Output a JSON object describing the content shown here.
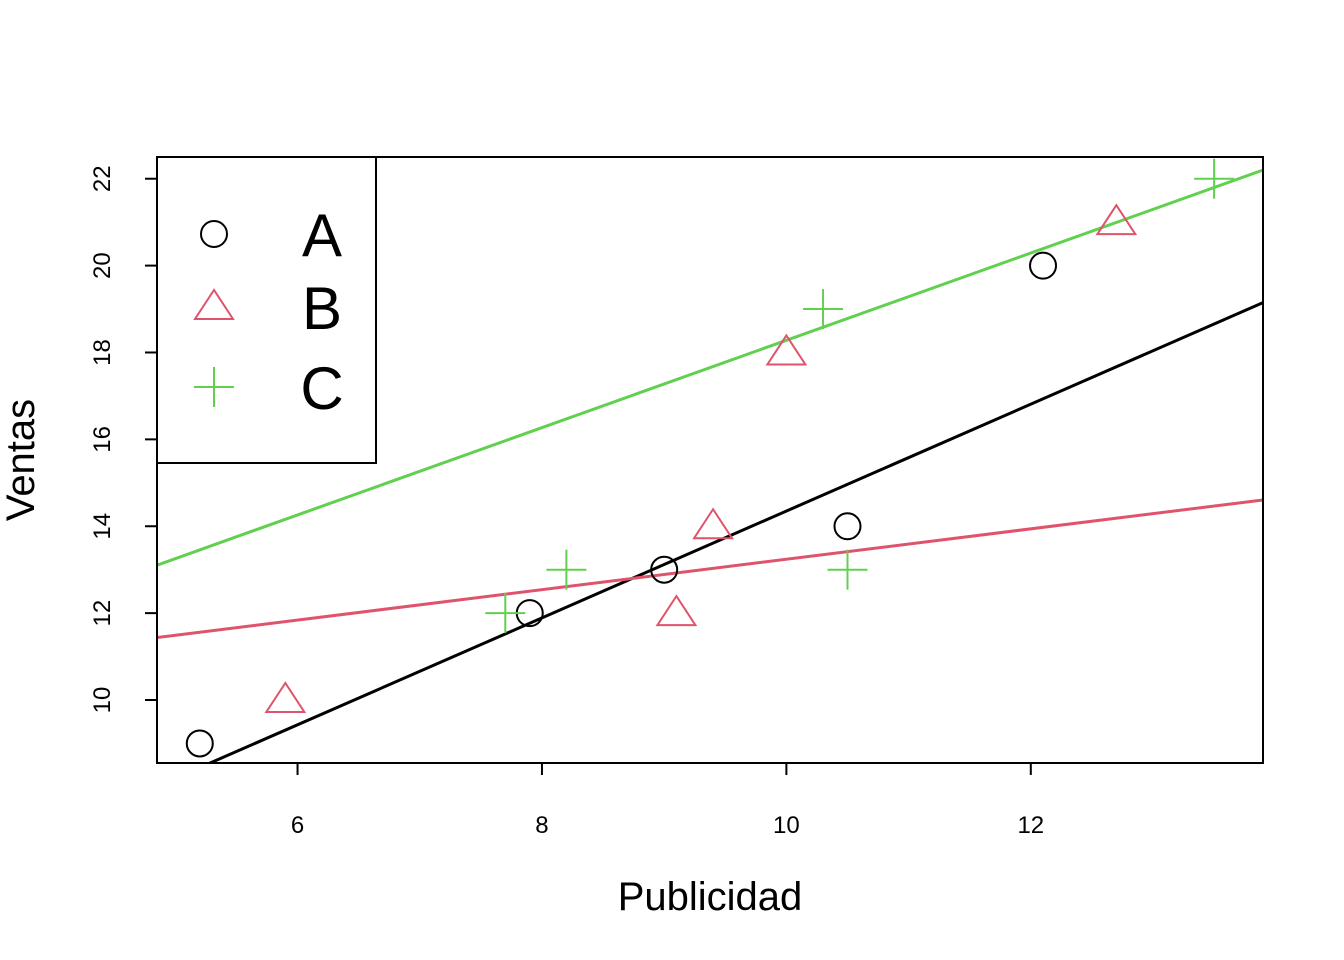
{
  "chart_data": {
    "type": "scatter",
    "xlabel": "Publicidad",
    "ylabel": "Ventas",
    "xlim": [
      4.85,
      13.9
    ],
    "ylim": [
      8.55,
      22.5
    ],
    "x_ticks": [
      6,
      8,
      10,
      12
    ],
    "y_ticks": [
      10,
      12,
      14,
      16,
      18,
      20,
      22
    ],
    "x_tick_labels": [
      "6",
      "8",
      "10",
      "12"
    ],
    "y_tick_labels": [
      "10",
      "12",
      "14",
      "16",
      "18",
      "20",
      "22"
    ],
    "grid": false,
    "legend_position": "top-left",
    "series": [
      {
        "name": "A",
        "marker": "circle",
        "color": "#000000",
        "points": [
          [
            5.2,
            9
          ],
          [
            7.9,
            12
          ],
          [
            9.0,
            13
          ],
          [
            10.5,
            14
          ],
          [
            12.1,
            20
          ]
        ],
        "fit_line": {
          "intercept": 2.05,
          "slope": 1.23
        }
      },
      {
        "name": "B",
        "marker": "triangle",
        "color": "#DF536B",
        "points": [
          [
            5.9,
            10
          ],
          [
            9.1,
            12
          ],
          [
            9.4,
            14
          ],
          [
            10.0,
            18
          ],
          [
            12.7,
            21
          ]
        ],
        "fit_line": {
          "intercept": 9.74,
          "slope": 0.35
        }
      },
      {
        "name": "C",
        "marker": "plus",
        "color": "#61D04F",
        "points": [
          [
            7.7,
            12
          ],
          [
            8.2,
            13
          ],
          [
            10.3,
            19
          ],
          [
            10.5,
            13
          ],
          [
            13.5,
            22
          ]
        ],
        "fit_line": {
          "intercept": 8.23,
          "slope": 1.005
        }
      }
    ]
  }
}
